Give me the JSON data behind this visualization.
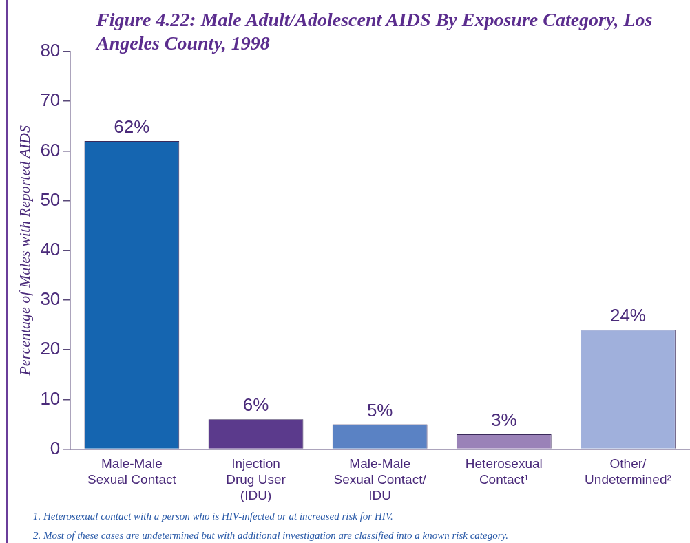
{
  "chart_data": {
    "type": "bar",
    "title": "Figure 4.22: Male Adult/Adolescent AIDS By Exposure Category, Los Angeles County, 1998",
    "ylabel": "Percentage of Males with Reported AIDS",
    "categories": [
      "Male-Male\nSexual Contact",
      "Injection\nDrug User\n(IDU)",
      "Male-Male\nSexual Contact/\nIDU",
      "Heterosexual\nContact¹",
      "Other/\nUndetermined²"
    ],
    "values": [
      62,
      6,
      5,
      3,
      24
    ],
    "colors": [
      "#1565b0",
      "#5b3a8c",
      "#5a82c4",
      "#9a82b8",
      "#a0b0dc"
    ],
    "value_labels": [
      "62%",
      "6%",
      "5%",
      "3%",
      "24%"
    ],
    "ylim": [
      0,
      80
    ],
    "yticks": [
      0,
      10,
      20,
      30,
      40,
      50,
      60,
      70,
      80
    ],
    "annotations": [
      "1. Heterosexual contact with a person who is HIV-infected or at increased risk for HIV.",
      "2. Most of these cases are undetermined but with additional investigation are classified into a known risk category."
    ]
  }
}
